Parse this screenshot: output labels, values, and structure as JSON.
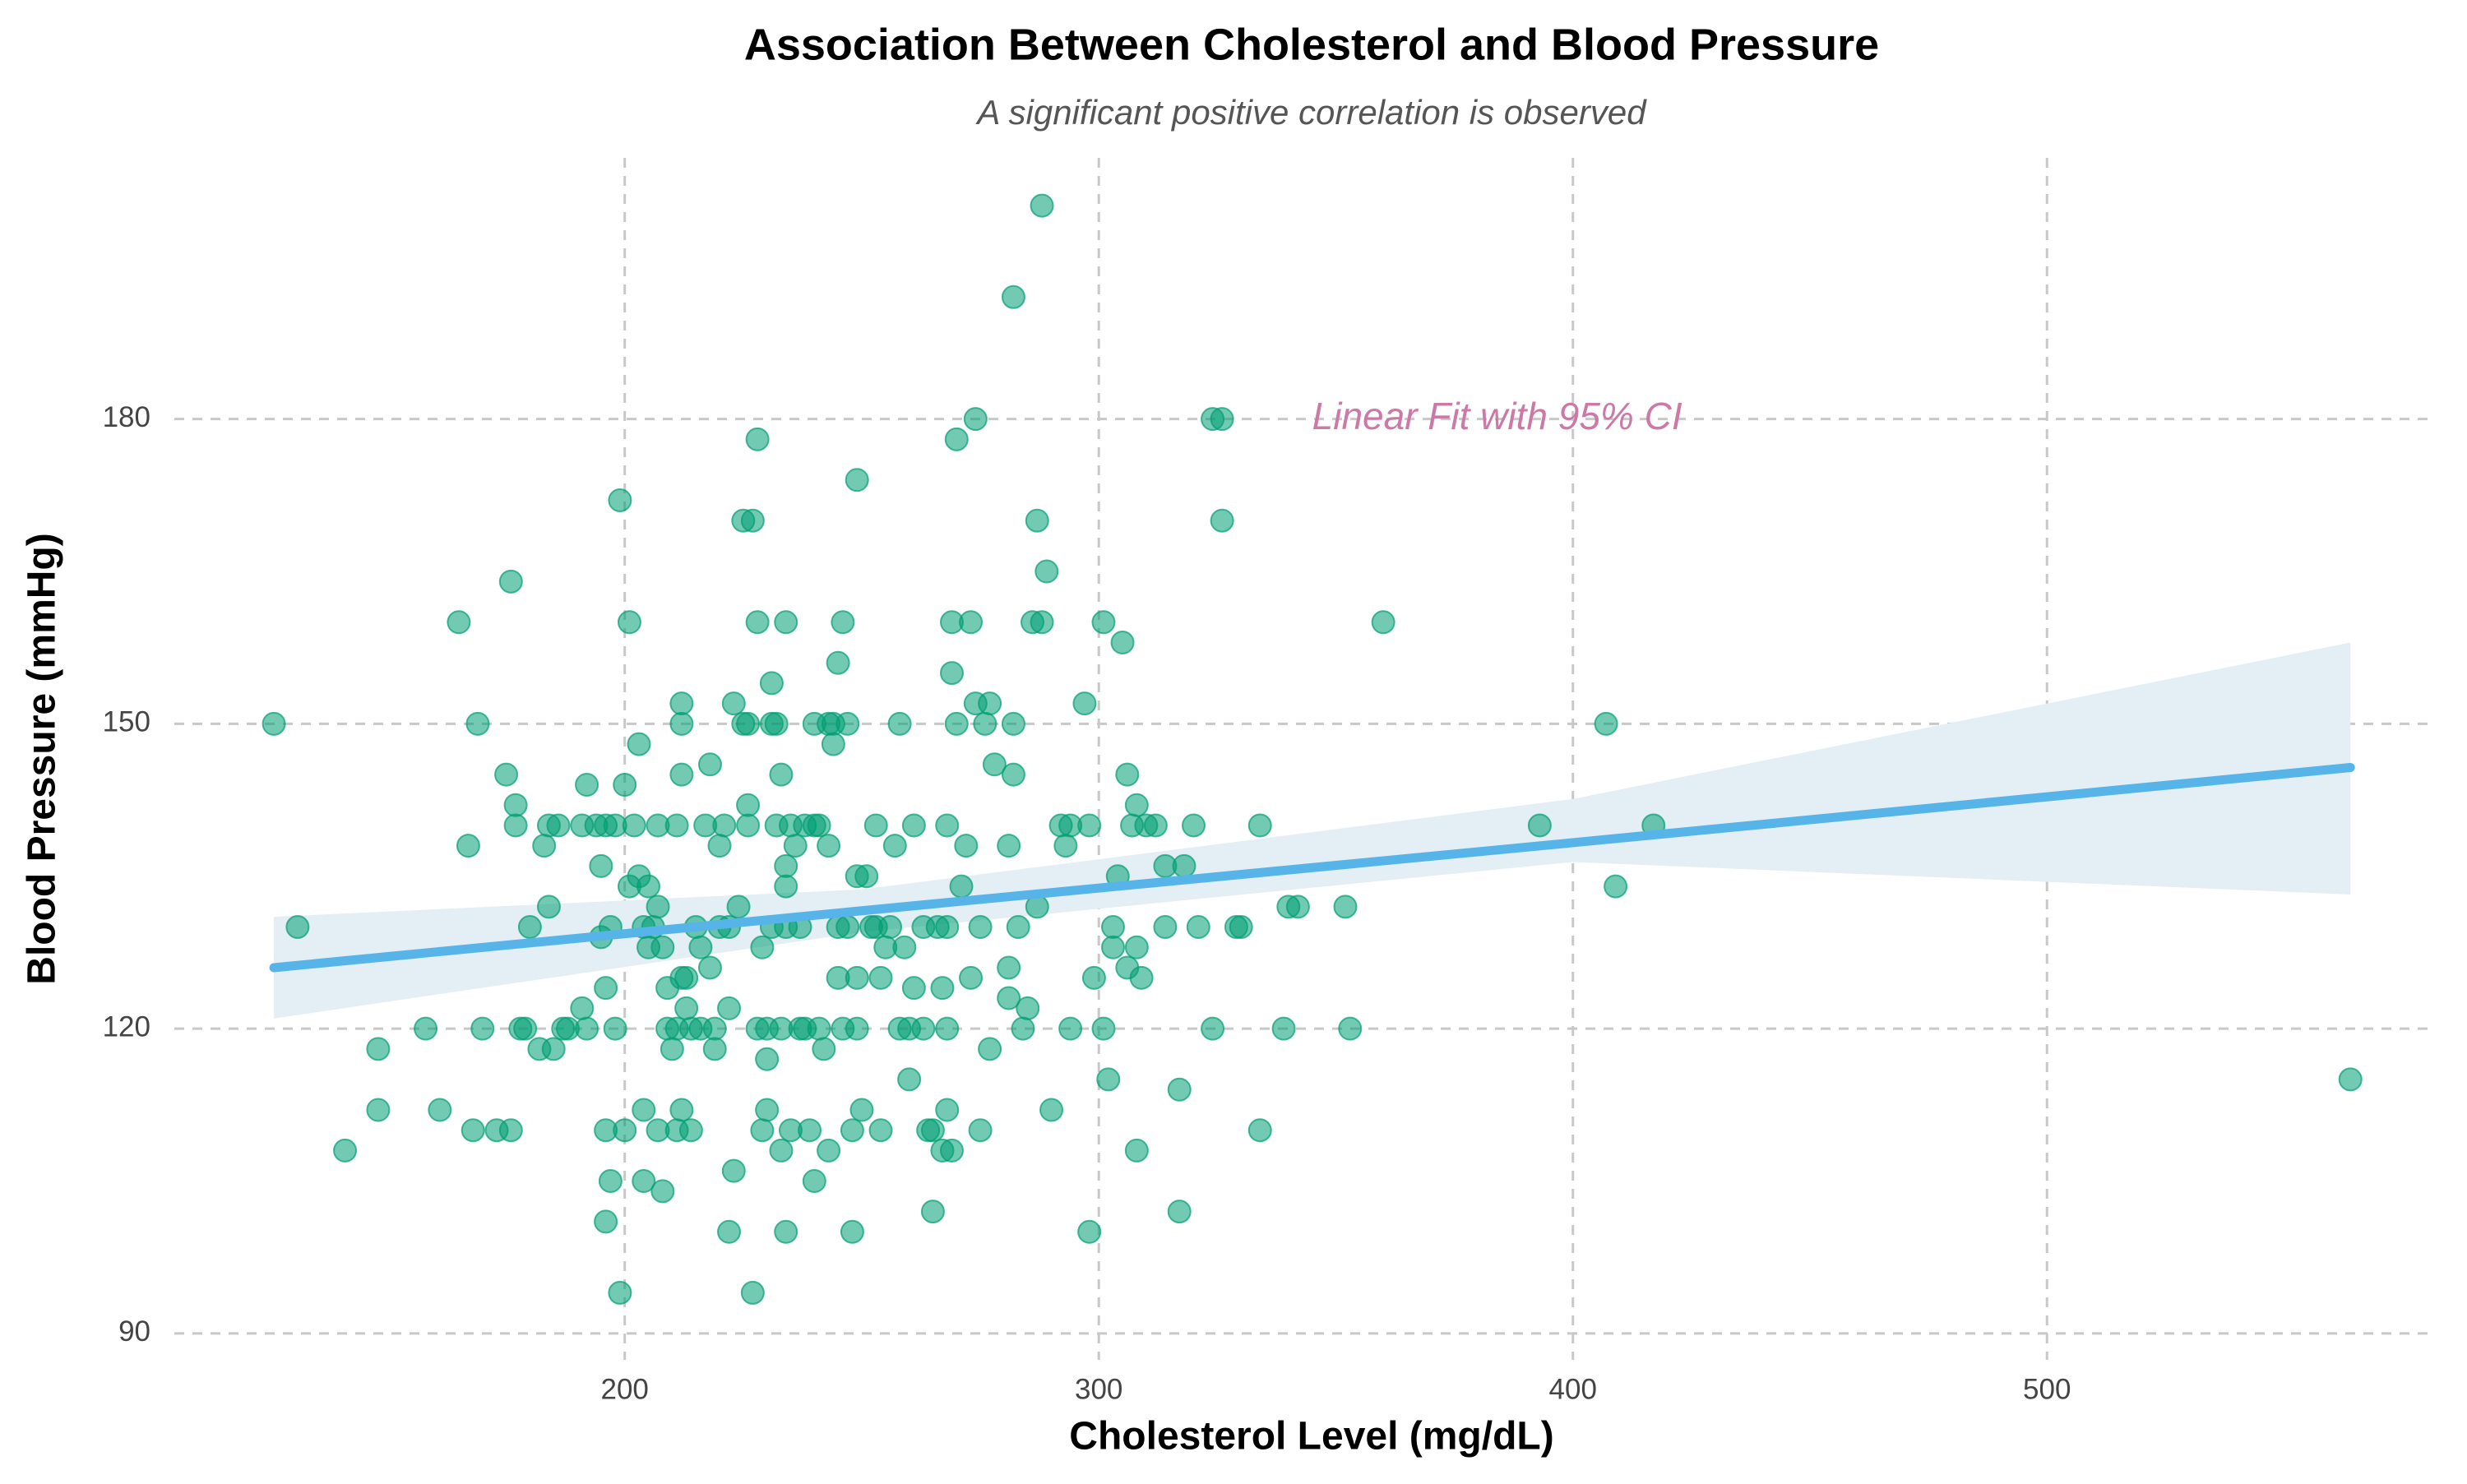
{
  "chart_data": {
    "type": "scatter",
    "title": "Association Between Cholesterol and Blood Pressure",
    "subtitle": "A significant positive correlation is observed",
    "xlabel": "Cholesterol Level (mg/dL)",
    "ylabel": "Blood Pressure (mmHg)",
    "annotation": {
      "text": "Linear Fit with 95% CI",
      "x": 345,
      "y": 180,
      "color": "#cc79a7"
    },
    "color": "#009e73",
    "grid": true,
    "xlim": [
      105,
      582
    ],
    "ylim": [
      87.4,
      205.7
    ],
    "xticks": [
      200,
      300,
      400,
      500
    ],
    "yticks": [
      90,
      120,
      150,
      180
    ],
    "x": [
      126,
      131,
      141,
      148,
      148,
      158,
      161,
      165,
      167,
      168,
      169,
      170,
      173,
      175,
      176,
      176,
      177,
      177,
      178,
      179,
      180,
      182,
      183,
      184,
      184,
      185,
      186,
      187,
      188,
      191,
      191,
      192,
      192,
      194,
      195,
      195,
      196,
      196,
      196,
      196,
      197,
      197,
      198,
      198,
      199,
      199,
      200,
      200,
      201,
      201,
      202,
      203,
      203,
      204,
      204,
      204,
      205,
      205,
      206,
      207,
      207,
      207,
      208,
      208,
      209,
      209,
      210,
      211,
      211,
      211,
      212,
      212,
      212,
      212,
      212,
      213,
      213,
      214,
      214,
      215,
      216,
      216,
      217,
      218,
      218,
      219,
      219,
      220,
      220,
      221,
      222,
      222,
      222,
      223,
      223,
      224,
      225,
      225,
      226,
      226,
      226,
      227,
      227,
      228,
      228,
      228,
      229,
      229,
      230,
      230,
      230,
      231,
      231,
      231,
      232,
      232,
      233,
      233,
      233,
      234,
      234,
      234,
      234,
      234,
      235,
      235,
      236,
      237,
      237,
      238,
      238,
      239,
      240,
      240,
      240,
      241,
      241,
      242,
      243,
      243,
      243,
      244,
      244,
      245,
      245,
      245,
      246,
      246,
      247,
      247,
      248,
      248,
      249,
      249,
      249,
      249,
      250,
      251,
      252,
      253,
      253,
      254,
      254,
      255,
      256,
      257,
      258,
      258,
      259,
      260,
      260,
      261,
      261,
      263,
      263,
      264,
      265,
      265,
      266,
      267,
      267,
      268,
      268,
      268,
      268,
      269,
      269,
      269,
      270,
      270,
      271,
      272,
      273,
      273,
      274,
      274,
      275,
      275,
      276,
      277,
      277,
      278,
      281,
      281,
      281,
      282,
      282,
      282,
      283,
      284,
      285,
      286,
      287,
      287,
      288,
      288,
      289,
      290,
      292,
      293,
      294,
      294,
      297,
      298,
      298,
      299,
      301,
      301,
      302,
      303,
      303,
      304,
      305,
      306,
      306,
      307,
      308,
      308,
      308,
      309,
      310,
      312,
      314,
      314,
      317,
      317,
      318,
      320,
      321,
      324,
      324,
      326,
      326,
      329,
      330,
      334,
      334,
      339,
      340,
      342,
      352,
      353,
      360,
      393,
      407,
      409,
      417,
      564
    ],
    "values": [
      150,
      130,
      108,
      118,
      112,
      120,
      112,
      160,
      138,
      110,
      150,
      120,
      110,
      145,
      110,
      164,
      142,
      140,
      120,
      120,
      130,
      118,
      138,
      132,
      140,
      118,
      140,
      120,
      120,
      140,
      122,
      144,
      120,
      140,
      136,
      129,
      140,
      110,
      101,
      124,
      130,
      105,
      140,
      120,
      94,
      172,
      144,
      110,
      160,
      134,
      140,
      148,
      135,
      105,
      112,
      130,
      134,
      128,
      130,
      110,
      140,
      132,
      128,
      104,
      124,
      120,
      118,
      140,
      110,
      120,
      152,
      150,
      145,
      125,
      112,
      125,
      122,
      120,
      110,
      130,
      128,
      120,
      140,
      146,
      126,
      120,
      118,
      138,
      130,
      140,
      122,
      100,
      130,
      152,
      106,
      132,
      170,
      150,
      150,
      142,
      140,
      170,
      94,
      120,
      160,
      178,
      110,
      128,
      117,
      112,
      120,
      150,
      130,
      154,
      150,
      140,
      145,
      108,
      120,
      160,
      100,
      136,
      134,
      130,
      140,
      110,
      138,
      130,
      120,
      120,
      140,
      110,
      150,
      140,
      105,
      120,
      140,
      118,
      150,
      108,
      138,
      150,
      148,
      125,
      156,
      130,
      160,
      120,
      130,
      150,
      100,
      110,
      174,
      135,
      125,
      120,
      112,
      135,
      130,
      140,
      130,
      125,
      110,
      128,
      130,
      138,
      150,
      120,
      128,
      115,
      120,
      140,
      124,
      130,
      120,
      110,
      102,
      110,
      130,
      124,
      108,
      130,
      120,
      140,
      112,
      155,
      108,
      160,
      178,
      150,
      134,
      138,
      160,
      125,
      152,
      180,
      130,
      110,
      150,
      152,
      118,
      146,
      126,
      138,
      123,
      145,
      192,
      150,
      130,
      120,
      122,
      160,
      132,
      170,
      201,
      160,
      165,
      112,
      140,
      138,
      140,
      120,
      152,
      140,
      100,
      125,
      160,
      120,
      115,
      130,
      128,
      135,
      158,
      126,
      145,
      140,
      128,
      142,
      108,
      125,
      140,
      140,
      130,
      136,
      114,
      102,
      136,
      140,
      130,
      120,
      180,
      170,
      180,
      130,
      130,
      140,
      110,
      120,
      132,
      132,
      132,
      120,
      160,
      140,
      150,
      134,
      140,
      115
    ],
    "fit": {
      "color": "#56b4e9",
      "band_color": "#e4eef5",
      "x": [
        126,
        250,
        400,
        564
      ],
      "values": [
        126,
        131.6,
        138.3,
        145.7
      ],
      "lower": [
        121,
        129.5,
        136.4,
        133.2
      ],
      "upper": [
        131,
        133.7,
        142.6,
        158
      ]
    }
  }
}
